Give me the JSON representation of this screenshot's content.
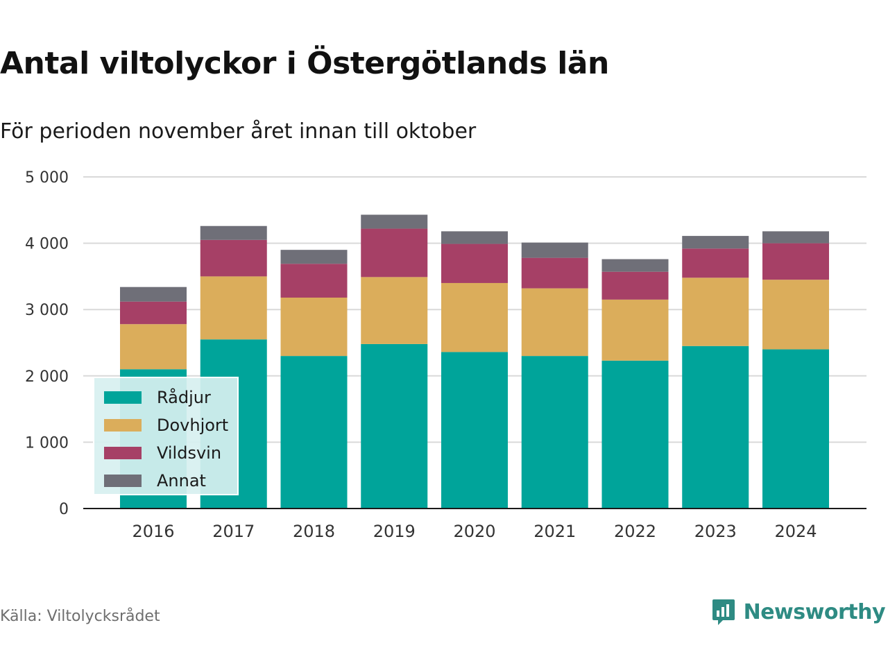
{
  "header": {
    "title": "Antal viltolyckor i Östergötlands län",
    "subtitle": "För perioden november året innan till oktober"
  },
  "footer": {
    "source": "Källa: Viltolycksrådet",
    "brand": "Newsworthy"
  },
  "colors": {
    "rådjur": "#00a49a",
    "dovhjort": "#dbad5b",
    "vildsvin": "#a64066",
    "annat": "#6f6f78",
    "grid": "#d9d9d9",
    "brand": "#2e8b83"
  },
  "chart_data": {
    "type": "bar",
    "stacked": true,
    "categories": [
      "2016",
      "2017",
      "2018",
      "2019",
      "2020",
      "2021",
      "2022",
      "2023",
      "2024"
    ],
    "series": [
      {
        "name": "Rådjur",
        "color": "#00a49a",
        "values": [
          2100,
          2550,
          2300,
          2480,
          2360,
          2300,
          2230,
          2450,
          2400
        ]
      },
      {
        "name": "Dovhjort",
        "color": "#dbad5b",
        "values": [
          680,
          950,
          880,
          1010,
          1040,
          1020,
          920,
          1030,
          1050
        ]
      },
      {
        "name": "Vildsvin",
        "color": "#a64066",
        "values": [
          340,
          550,
          510,
          730,
          590,
          460,
          420,
          440,
          550
        ]
      },
      {
        "name": "Annat",
        "color": "#6f6f78",
        "values": [
          220,
          210,
          210,
          210,
          190,
          230,
          190,
          190,
          180
        ]
      }
    ],
    "ylim": [
      0,
      5000
    ],
    "yticks": [
      0,
      1000,
      2000,
      3000,
      4000,
      5000
    ],
    "ytick_labels": [
      "0",
      "1 000",
      "2 000",
      "3 000",
      "4 000",
      "5 000"
    ],
    "grid": true,
    "legend_position": "bottom-left"
  }
}
